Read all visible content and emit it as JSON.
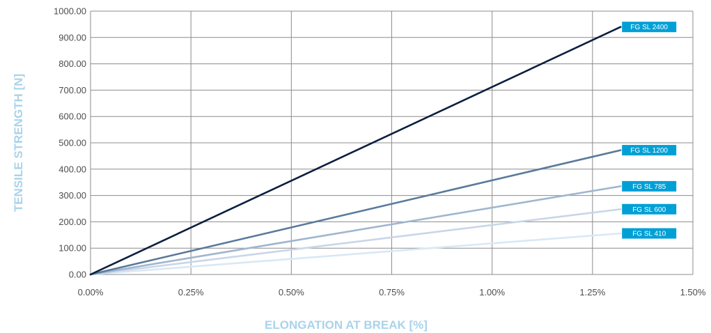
{
  "chart_data": {
    "type": "line",
    "xlabel": "ELONGATION AT BREAK [%]",
    "ylabel": "TENSILE STRENGTH [N]",
    "xlim": [
      0,
      1.5
    ],
    "ylim": [
      0,
      1000
    ],
    "x_ticks": [
      "0.00%",
      "0.25%",
      "0.50%",
      "0.75%",
      "1.00%",
      "1.25%",
      "1.50%"
    ],
    "y_ticks": [
      "0.00",
      "100.00",
      "200.00",
      "300.00",
      "400.00",
      "500.00",
      "600.00",
      "700.00",
      "800.00",
      "900.00",
      "1000.00"
    ],
    "grid": true,
    "legend": "inline-right",
    "label_color": "#00a0d6",
    "series": [
      {
        "name": "FG SL 2400",
        "color": "#0c1f3f",
        "x": [
          0,
          1.32
        ],
        "y": [
          0,
          940
        ]
      },
      {
        "name": "FG SL 1200",
        "color": "#5a7a9c",
        "x": [
          0,
          1.32
        ],
        "y": [
          0,
          472
        ]
      },
      {
        "name": "FG SL 785",
        "color": "#9fb6cf",
        "x": [
          0,
          1.32
        ],
        "y": [
          0,
          335
        ]
      },
      {
        "name": "FG SL 600",
        "color": "#c9d6e8",
        "x": [
          0,
          1.32
        ],
        "y": [
          0,
          248
        ]
      },
      {
        "name": "FG SL 410",
        "color": "#d9e8f4",
        "x": [
          0,
          1.32
        ],
        "y": [
          0,
          156
        ]
      }
    ]
  }
}
